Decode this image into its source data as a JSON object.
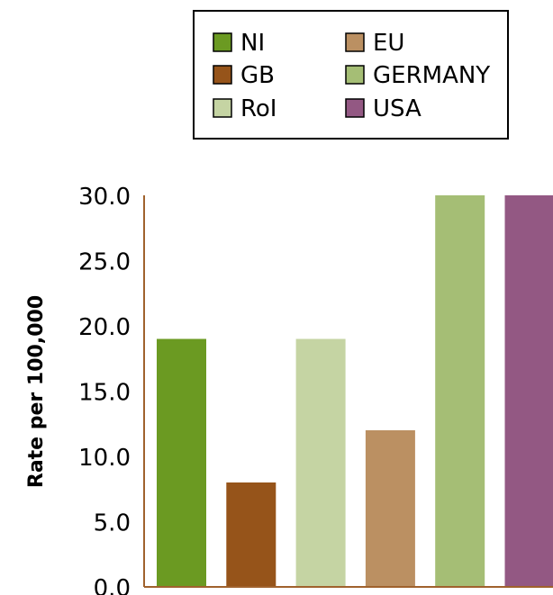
{
  "chart_data": {
    "type": "bar",
    "title": "",
    "xlabel": "",
    "ylabel": "Rate per 100,000",
    "ylim": [
      0,
      30
    ],
    "yticks": [
      "0.0",
      "5.0",
      "10.0",
      "15.0",
      "20.0",
      "25.0",
      "30.0"
    ],
    "grid": false,
    "legend_position": "top-center",
    "categories": [
      "NI",
      "GB",
      "RoI",
      "EU",
      "GERMANY",
      "USA"
    ],
    "values": [
      19,
      8,
      19,
      12,
      30,
      30
    ],
    "colors": [
      "#6b9a22",
      "#96541a",
      "#c5d4a3",
      "#bb9062",
      "#a5be75",
      "#935883"
    ],
    "axis_color": "#a0622d"
  }
}
